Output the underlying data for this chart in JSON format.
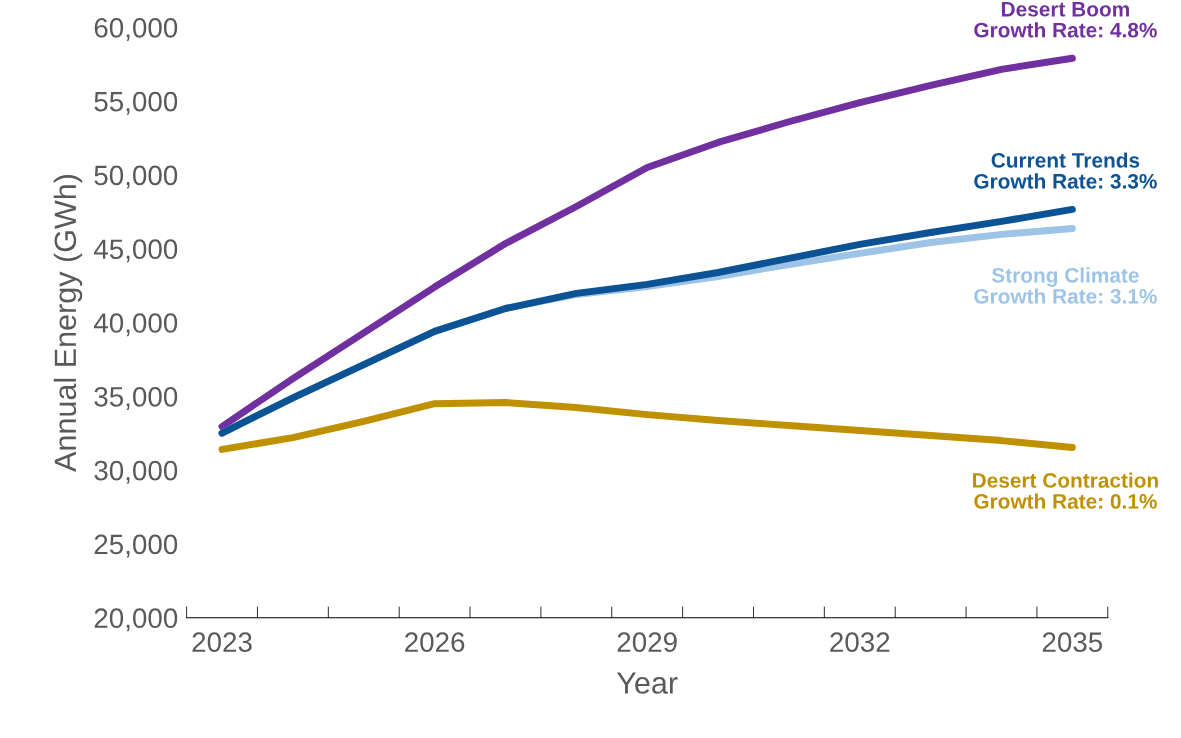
{
  "chart_data": {
    "type": "line",
    "xlabel": "Year",
    "ylabel": "Annual Energy (GWh)",
    "categories": [
      "2023",
      null,
      null,
      "2026",
      null,
      null,
      "2029",
      null,
      null,
      "2032",
      null,
      null,
      "2035"
    ],
    "ylim": [
      20000,
      60000
    ],
    "yticks": [
      {
        "value": 20000,
        "label": "20,000"
      },
      {
        "value": 25000,
        "label": "25,000"
      },
      {
        "value": 30000,
        "label": "30,000"
      },
      {
        "value": 35000,
        "label": "35,000"
      },
      {
        "value": 40000,
        "label": "40,000"
      },
      {
        "value": 45000,
        "label": "45,000"
      },
      {
        "value": 50000,
        "label": "50,000"
      },
      {
        "value": 55000,
        "label": "55,000"
      },
      {
        "value": 60000,
        "label": "60,000"
      }
    ],
    "grid": false,
    "legend": false,
    "marker": "none",
    "line_style": "solid",
    "series": [
      {
        "name": "Desert Boom\nGrowth Rate: 4.8%",
        "color": "#7030a0",
        "values": [
          32950,
          36200,
          39300,
          42400,
          45350,
          47860,
          50500,
          52200,
          53600,
          54900,
          56070,
          57150,
          57900
        ]
      },
      {
        "name": "Strong Climate\nGrowth Rate: 3.1%",
        "color": "#9dc3e6",
        "values": [
          32500,
          34900,
          37150,
          39400,
          40950,
          41900,
          42440,
          43120,
          43930,
          44680,
          45420,
          45970,
          46370
        ]
      },
      {
        "name": "Current Trends\nGrowth Rate: 3.3%",
        "color": "#0b5394",
        "values": [
          32500,
          34900,
          37150,
          39400,
          40950,
          41970,
          42580,
          43390,
          44340,
          45290,
          46100,
          46850,
          47660
        ]
      },
      {
        "name": "Desert Contraction\nGrowth Rate: 0.1%",
        "color": "#bf9000",
        "values": [
          31400,
          32200,
          33300,
          34500,
          34580,
          34240,
          33760,
          33360,
          33020,
          32680,
          32340,
          32000,
          31530
        ]
      }
    ]
  }
}
